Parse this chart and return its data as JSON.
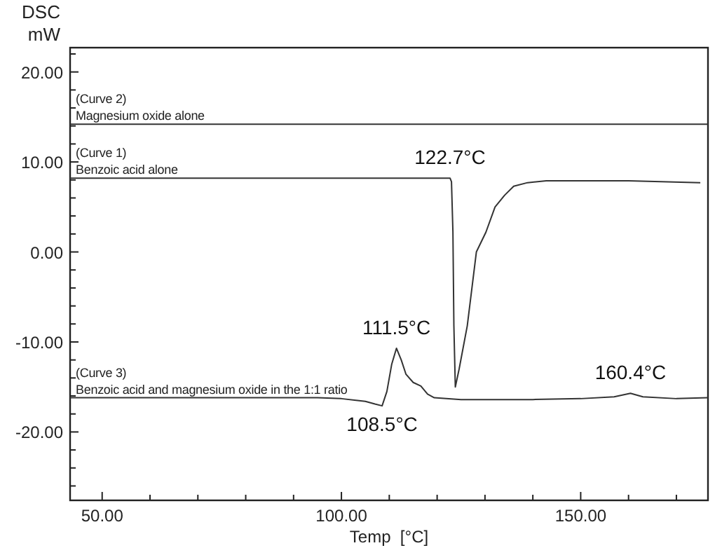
{
  "chart_data": {
    "type": "line",
    "xlabel": "Temp  [°C]",
    "ylabel": "DSC\nmW",
    "xlim": [
      43.3,
      176.6
    ],
    "ylim": [
      -27.6,
      22.7
    ],
    "xticks": [
      {
        "value": 50,
        "label": "50.00"
      },
      {
        "value": 60,
        "label": null
      },
      {
        "value": 70,
        "label": null
      },
      {
        "value": 80,
        "label": null
      },
      {
        "value": 90,
        "label": null
      },
      {
        "value": 100,
        "label": "100.00"
      },
      {
        "value": 110,
        "label": null
      },
      {
        "value": 120,
        "label": null
      },
      {
        "value": 130,
        "label": null
      },
      {
        "value": 140,
        "label": null
      },
      {
        "value": 150,
        "label": "150.00"
      },
      {
        "value": 160,
        "label": null
      },
      {
        "value": 170,
        "label": null
      }
    ],
    "yticks": [
      {
        "value": -26,
        "label": null
      },
      {
        "value": -24,
        "label": null
      },
      {
        "value": -22,
        "label": null
      },
      {
        "value": -20,
        "label": "-20.00"
      },
      {
        "value": -18,
        "label": null
      },
      {
        "value": -16,
        "label": null
      },
      {
        "value": -14,
        "label": null
      },
      {
        "value": -12,
        "label": null
      },
      {
        "value": -10,
        "label": "-10.00"
      },
      {
        "value": -8,
        "label": null
      },
      {
        "value": -6,
        "label": null
      },
      {
        "value": -4,
        "label": null
      },
      {
        "value": -2,
        "label": null
      },
      {
        "value": 0,
        "label": "0.00"
      },
      {
        "value": 2,
        "label": null
      },
      {
        "value": 4,
        "label": null
      },
      {
        "value": 6,
        "label": null
      },
      {
        "value": 8,
        "label": null
      },
      {
        "value": 10,
        "label": "10.00"
      },
      {
        "value": 12,
        "label": null
      },
      {
        "value": 14,
        "label": null
      },
      {
        "value": 16,
        "label": null
      },
      {
        "value": 18,
        "label": null
      },
      {
        "value": 20,
        "label": "20.00"
      },
      {
        "value": 22,
        "label": null
      }
    ],
    "series": [
      {
        "name": "(Curve 2)\nMagnesium oxide alone",
        "color": "#333333",
        "x": [
          43.3,
          176.6
        ],
        "values": [
          14.2,
          14.2
        ]
      },
      {
        "name": "(Curve 1)\nBenzoic acid alone",
        "color": "#333333",
        "x": [
          43.3,
          122.7,
          123.0,
          123.3,
          123.5,
          123.8,
          124.6,
          126.3,
          128.2,
          130.2,
          132.1,
          134.1,
          136.0,
          138.9,
          142.8,
          160,
          175
        ],
        "values": [
          8.2,
          8.2,
          7.8,
          2.2,
          -8.2,
          -15,
          -13,
          -8.2,
          0,
          2.2,
          5.0,
          6.3,
          7.3,
          7.7,
          7.9,
          7.9,
          7.7
        ]
      },
      {
        "name": "(Curve 3)\nBenzoic acid and magnesium oxide in the 1:1 ratio",
        "color": "#333333",
        "x": [
          43.3,
          95,
          100,
          105,
          107,
          108.5,
          109.5,
          110.5,
          111.5,
          112.5,
          113.5,
          115,
          116.6,
          118,
          119.4,
          125,
          140,
          150,
          157,
          160.4,
          163,
          170,
          176.6
        ],
        "values": [
          -16.2,
          -16.2,
          -16.3,
          -16.6,
          -16.9,
          -17.1,
          -15.5,
          -12.5,
          -10.7,
          -12,
          -13.6,
          -14.5,
          -14.9,
          -15.8,
          -16.2,
          -16.4,
          -16.4,
          -16.3,
          -16.1,
          -15.7,
          -16.1,
          -16.3,
          -16.2
        ]
      }
    ],
    "annotations": [
      {
        "text": "122.7°C",
        "x": 122.7,
        "y": 8.2
      },
      {
        "text": "111.5°C",
        "x": 111.5,
        "y": -10.7
      },
      {
        "text": "108.5°C",
        "x": 108.5,
        "y": -17.1
      },
      {
        "text": "160.4°C",
        "x": 160.4,
        "y": -15.7
      }
    ]
  }
}
